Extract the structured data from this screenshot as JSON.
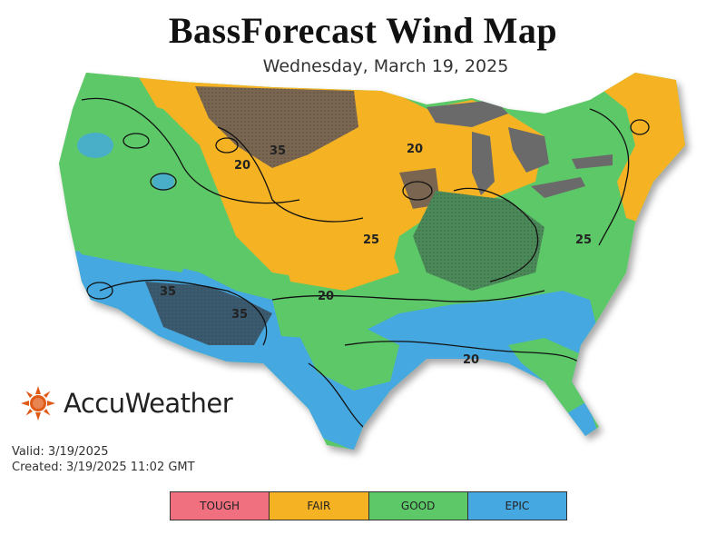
{
  "title": "BassForecast Wind Map",
  "date": "Wednesday, March 19, 2025",
  "brand": {
    "name": "AccuWeather",
    "logo_color": "#e05a18"
  },
  "valid": "Valid: 3/19/2025",
  "created": "Created: 3/19/2025 11:02 GMT",
  "contour_labels": [
    "35",
    "20",
    "25",
    "20",
    "35",
    "35",
    "20",
    "20",
    "25"
  ],
  "legend": [
    {
      "label": "TOUGH",
      "color": "#f07080"
    },
    {
      "label": "FAIR",
      "color": "#f5b324"
    },
    {
      "label": "GOOD",
      "color": "#5dc868"
    },
    {
      "label": "EPIC",
      "color": "#45a8e0"
    }
  ],
  "colors": {
    "tough_dark": "#7a6650",
    "fair": "#f5b324",
    "good": "#5dc868",
    "good_dark": "#4a8a58",
    "epic": "#45a8e0",
    "epic_dark": "#3a5a70",
    "lakes": "#6a6a6a"
  }
}
